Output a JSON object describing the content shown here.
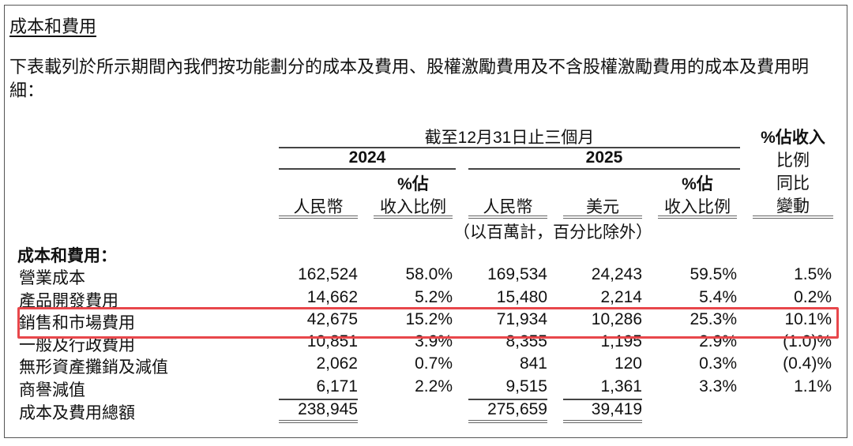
{
  "title": "成本和費用",
  "paragraph": "下表載列於所示期間內我們按功能劃分的成本及費用、股權激勵費用及不含股權激勵費用的成本及費用明細：",
  "header": {
    "period": "截至12月31日止三個月",
    "year_2024": "2024",
    "year_2025": "2025",
    "yoy_header": [
      "%佔收入",
      "比例",
      "同比",
      "變動"
    ],
    "rmb": "人民幣",
    "pct_top": "%佔",
    "pct_bottom": "收入比例",
    "usd": "美元",
    "unit_note": "（以百萬計，百分比除外）"
  },
  "section_label": "成本和費用：",
  "rows": [
    {
      "label": "營業成本",
      "v": [
        "162,524",
        "58.0%",
        "169,534",
        "24,243",
        "59.5%",
        "1.5%"
      ]
    },
    {
      "label": "產品開發費用",
      "v": [
        "14,662",
        "5.2%",
        "15,480",
        "2,214",
        "5.4%",
        "0.2%"
      ]
    },
    {
      "label": "銷售和市場費用",
      "v": [
        "42,675",
        "15.2%",
        "71,934",
        "10,286",
        "25.3%",
        "10.1%"
      ],
      "highlighted": true
    },
    {
      "label": "一般及行政費用",
      "v": [
        "10,851",
        "3.9%",
        "8,355",
        "1,195",
        "2.9%",
        "(1.0)%"
      ]
    },
    {
      "label": "無形資產攤銷及減值",
      "v": [
        "2,062",
        "0.7%",
        "841",
        "120",
        "0.3%",
        "(0.4)%"
      ]
    },
    {
      "label": "商譽減值",
      "v": [
        "6,171",
        "2.2%",
        "9,515",
        "1,361",
        "3.3%",
        "1.1%"
      ]
    },
    {
      "label": "成本及費用總額",
      "v": [
        "238,945",
        "",
        "275,659",
        "39,419",
        "",
        ""
      ]
    }
  ],
  "highlight_color": "#e8474b"
}
